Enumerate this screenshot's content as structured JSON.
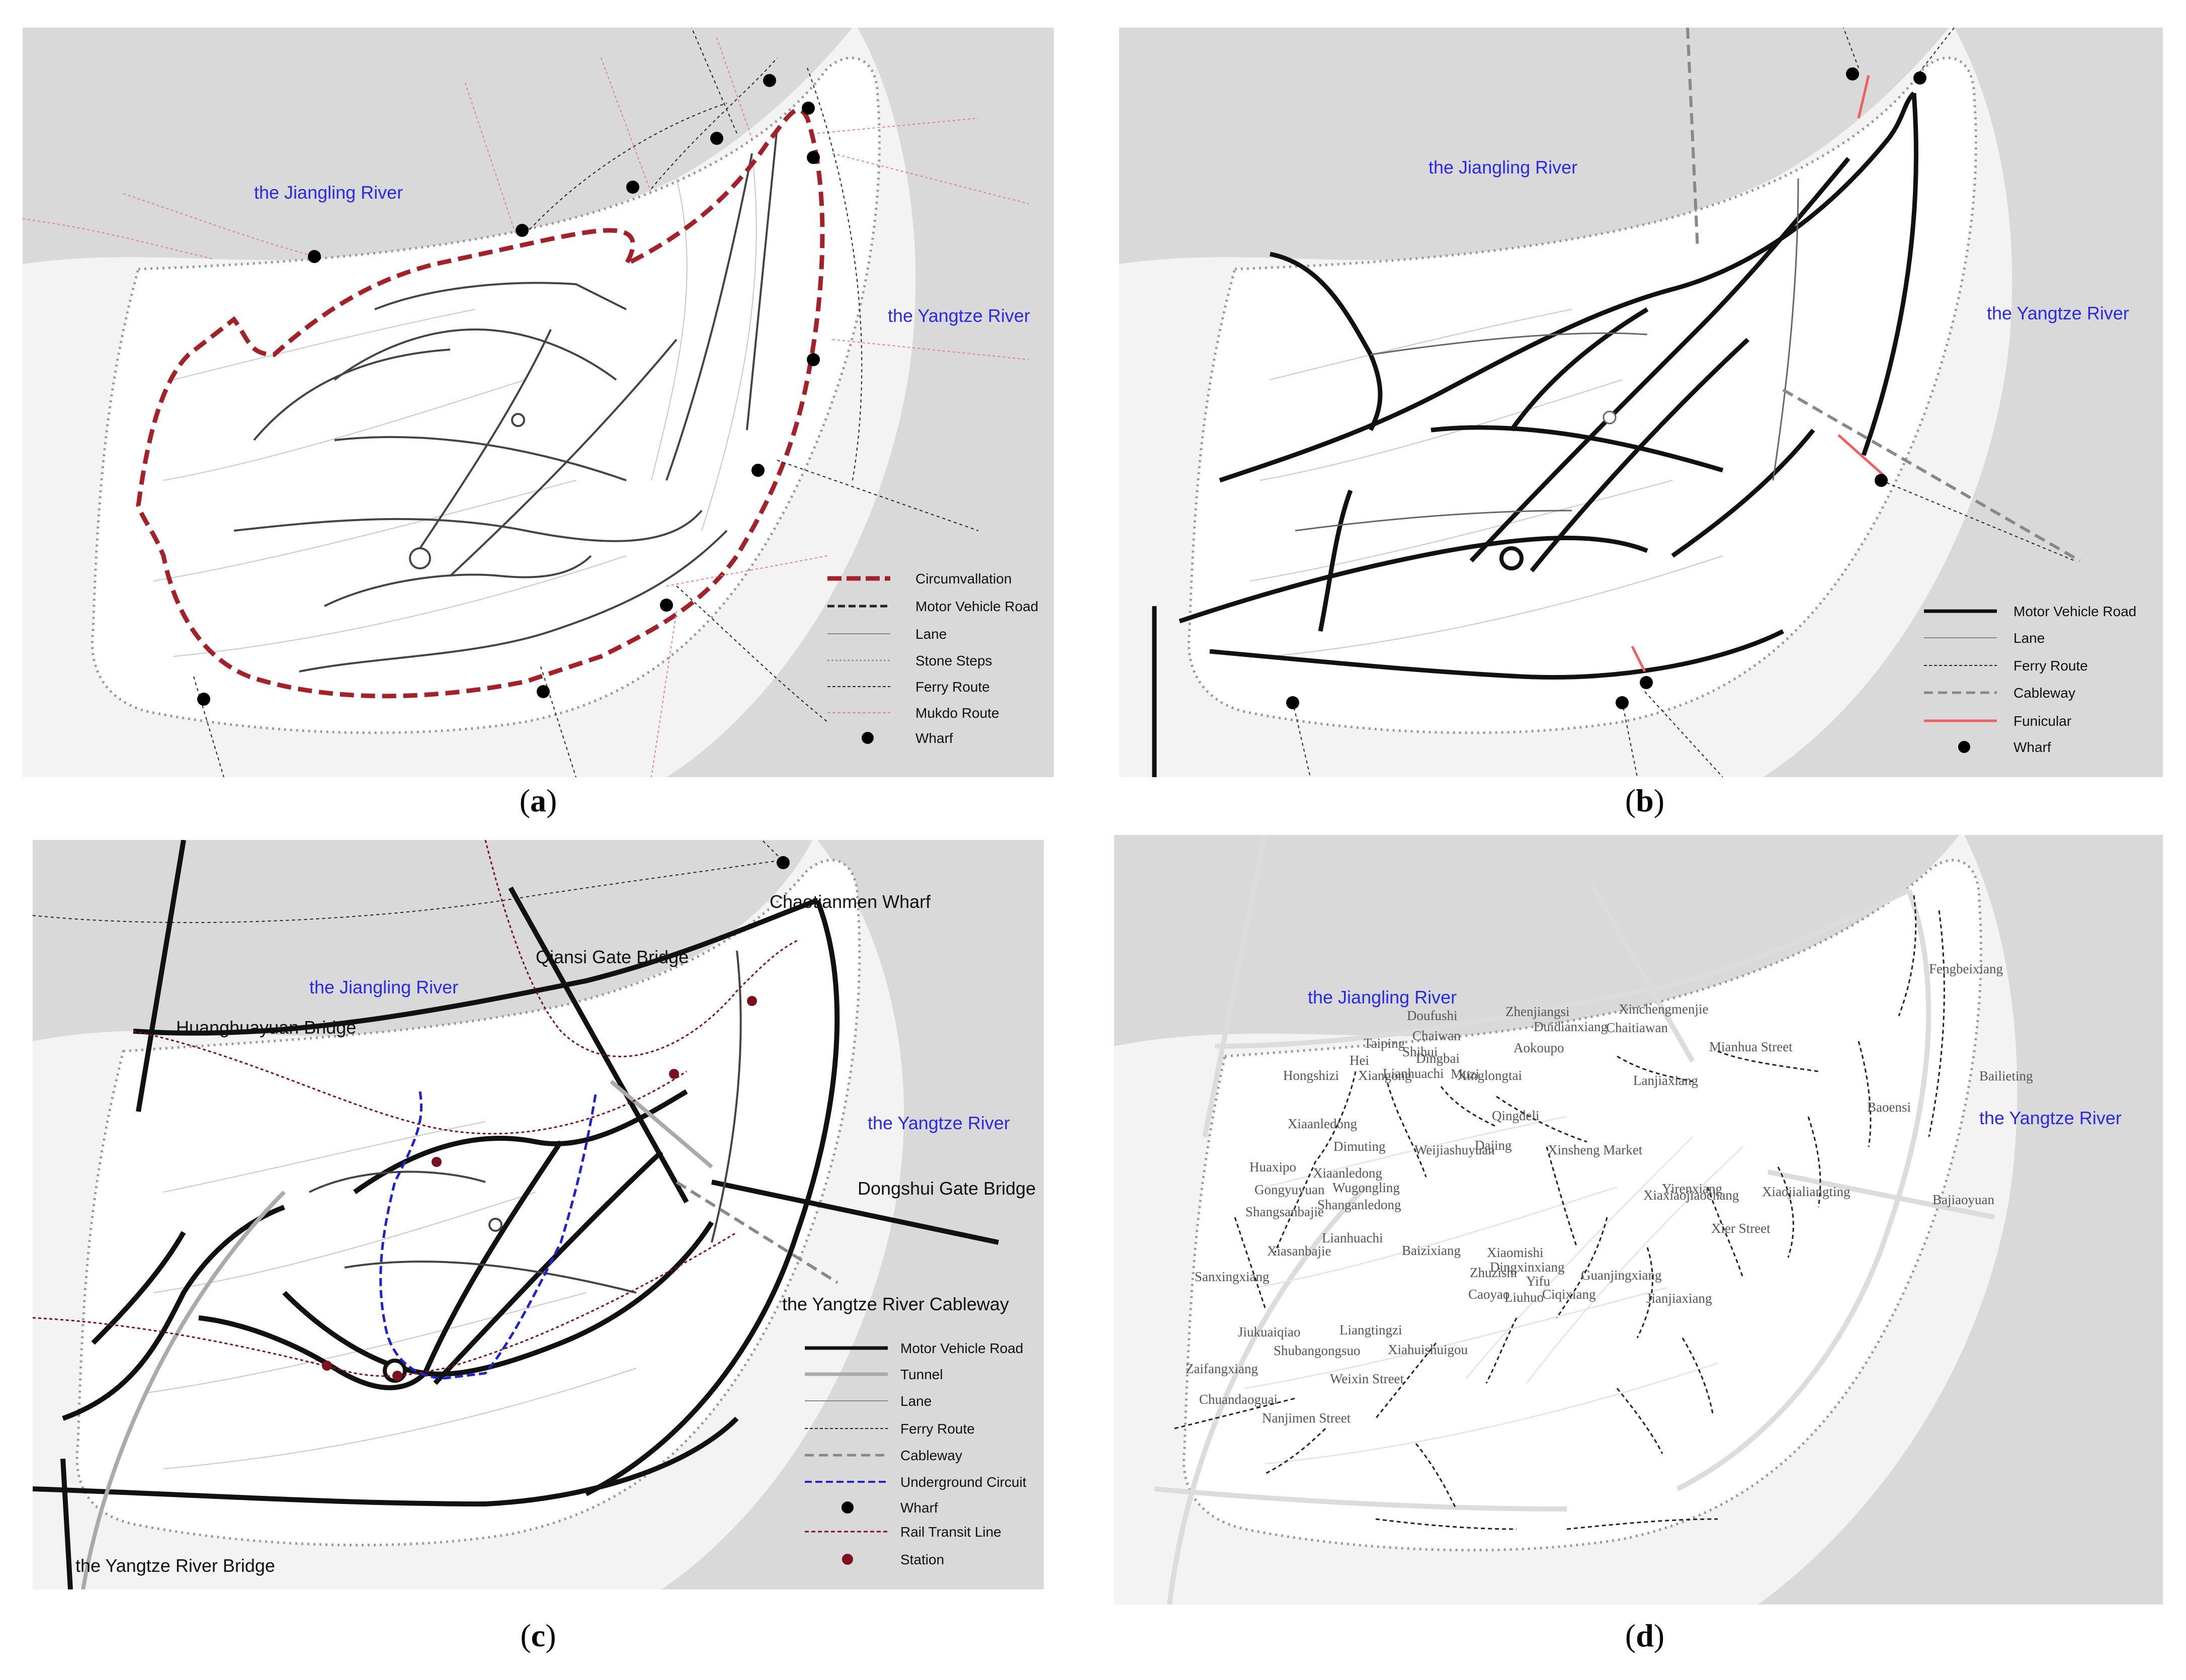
{
  "panels": [
    {
      "caption": "a",
      "rivers": [
        "the Jiangling River",
        "the Yangtze River"
      ],
      "legend": [
        {
          "label": "Circumvallation",
          "style": "circumvallation"
        },
        {
          "label": "Motor Vehicle Road",
          "style": "motor-dashed"
        },
        {
          "label": "Lane",
          "style": "lane"
        },
        {
          "label": "Stone Steps",
          "style": "stone-steps"
        },
        {
          "label": "Ferry Route",
          "style": "ferry"
        },
        {
          "label": "Mukdo  Route",
          "style": "mukdo"
        },
        {
          "label": "Wharf",
          "style": "wharf"
        }
      ]
    },
    {
      "caption": "b",
      "rivers": [
        "the Jiangling River",
        "the Yangtze River"
      ],
      "legend": [
        {
          "label": "Motor Vehicle Road",
          "style": "motor"
        },
        {
          "label": "Lane",
          "style": "lane"
        },
        {
          "label": "Ferry Route",
          "style": "ferry"
        },
        {
          "label": "Cableway",
          "style": "cableway"
        },
        {
          "label": "Funicular",
          "style": "funicular"
        },
        {
          "label": "Wharf",
          "style": "wharf"
        }
      ]
    },
    {
      "caption": "c",
      "rivers": [
        "the Jiangling River",
        "the Yangtze River"
      ],
      "bridges": [
        "Chaotianmen Wharf",
        "Qiansi Gate Bridge",
        "Huanghuayuan Bridge",
        "Dongshui Gate Bridge",
        "the Yangtze River Cableway",
        "the Yangtze River Bridge"
      ],
      "legend": [
        {
          "label": "Motor Vehicle Road",
          "style": "motor"
        },
        {
          "label": "Tunnel",
          "style": "tunnel"
        },
        {
          "label": "Lane",
          "style": "lane"
        },
        {
          "label": "Ferry Route",
          "style": "ferry"
        },
        {
          "label": "Cableway",
          "style": "cableway"
        },
        {
          "label": "Underground Circuit",
          "style": "underground"
        },
        {
          "label": "Wharf",
          "style": "wharf"
        },
        {
          "label": "Rail Transit Line",
          "style": "rail"
        },
        {
          "label": "Station",
          "style": "station"
        }
      ]
    },
    {
      "caption": "d",
      "rivers": [
        "the Jiangling River",
        "the Yangtze River"
      ],
      "streets": [
        "Doufushi",
        "Zhenjiangsi",
        "Xinchengmenjie",
        "Chaitiawan",
        "Fengbeixiang",
        "Chaiwan",
        "Duidianxiang",
        "Taiping",
        "Shihui",
        "Aokoupo",
        "Mianhua Street",
        "Hei",
        "Dingbai",
        "Bailieting",
        "Hongshizi",
        "Lianhuachi",
        "Muzi",
        "Xinglongtai",
        "Lanjiaxiang",
        "Xiangong",
        "Baoensi",
        "Xiaanledong",
        "Qingdeli",
        "Dimuting",
        "Weijiashuyuan",
        "Xinsheng Market",
        "Huaxipo",
        "Xiaanledong",
        "Dajing",
        "Bajiaoyuan",
        "Gongyuyuan",
        "Wugongling",
        "Yirenxiang",
        "Xiaojialiangting",
        "Shanganledong",
        "Xiaxiaojiaochang",
        "Shangsanbajie",
        "Lianhuachi",
        "Xier Street",
        "Xiasanbajie",
        "Baizixiang",
        "Xiaomishi",
        "Dingxinxiang",
        "Sanxingxiang",
        "Zhuzishi",
        "Yifu",
        "Guanjingxiang",
        "Caoyao",
        "Liuhuo",
        "Ciqixiang",
        "Jianjiaxiang",
        "Jiukuaiqiao",
        "Liangtingzi",
        "Shubangongsuo",
        "Xiahuishuigou",
        "Zaifangxiang",
        "Weixin Street",
        "Chuandaoguai",
        "Nanjimen Street"
      ]
    }
  ]
}
